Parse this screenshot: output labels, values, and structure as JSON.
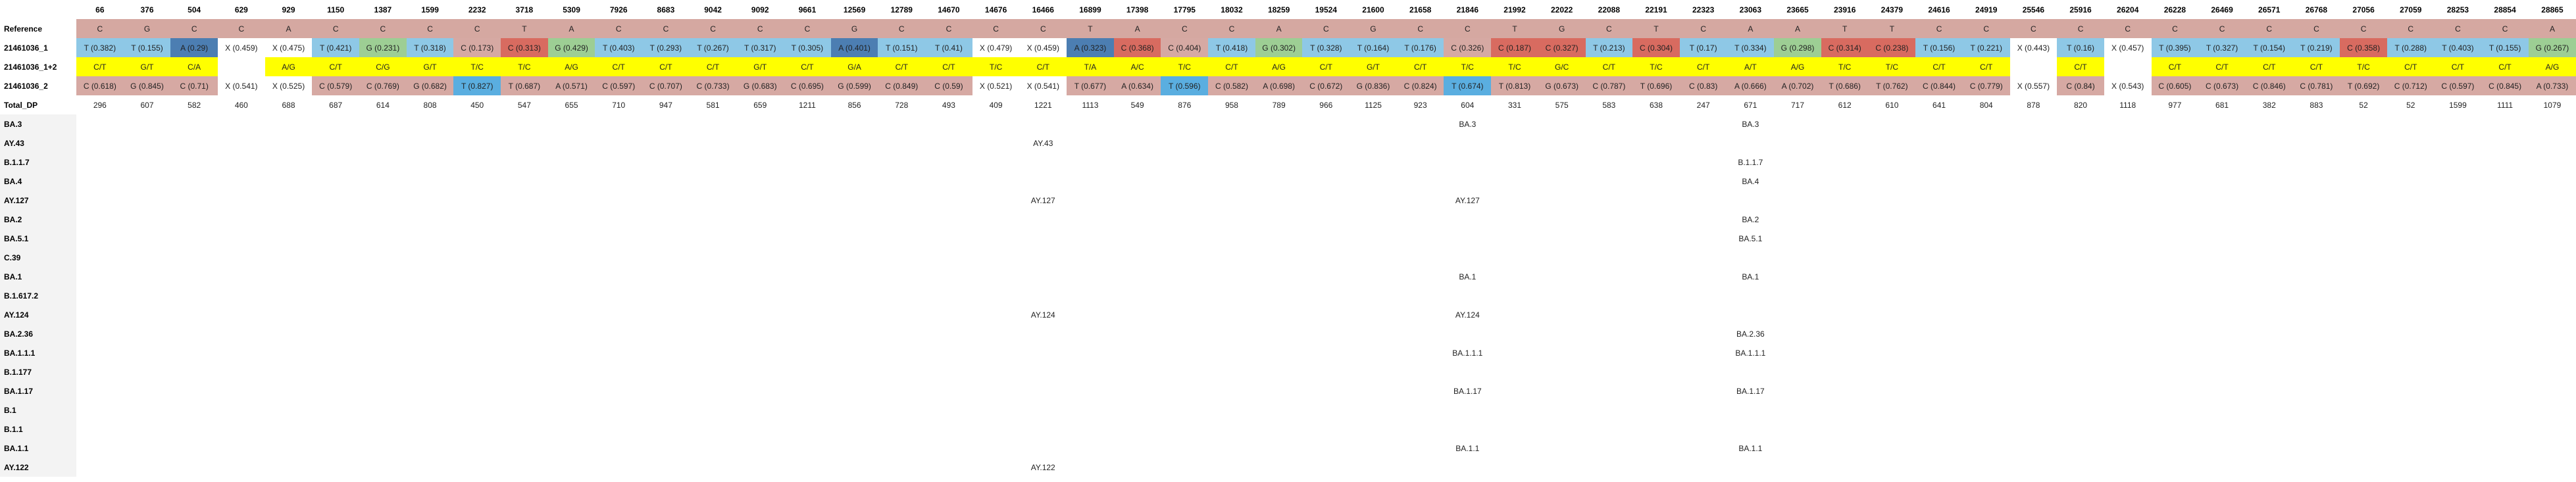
{
  "positions": [
    "66",
    "376",
    "504",
    "629",
    "929",
    "1150",
    "1387",
    "1599",
    "2232",
    "3718",
    "5309",
    "7926",
    "8683",
    "9042",
    "9092",
    "9661",
    "12569",
    "12789",
    "14670",
    "14676",
    "16466",
    "16899",
    "17398",
    "17795",
    "18032",
    "18259",
    "19524",
    "21600",
    "21658",
    "21846",
    "21992",
    "22022",
    "22088",
    "22191",
    "22323",
    "23063",
    "23665",
    "23916",
    "24379",
    "24616",
    "24919",
    "25546",
    "25916",
    "26204",
    "26228",
    "26469",
    "26571",
    "26768",
    "27056",
    "27059",
    "28253",
    "28854",
    "28865"
  ],
  "reference": {
    "label": "Reference",
    "values": [
      "C",
      "G",
      "C",
      "C",
      "A",
      "C",
      "C",
      "C",
      "C",
      "T",
      "A",
      "C",
      "C",
      "C",
      "C",
      "C",
      "G",
      "C",
      "C",
      "C",
      "C",
      "T",
      "A",
      "C",
      "C",
      "A",
      "C",
      "G",
      "C",
      "C",
      "T",
      "G",
      "C",
      "T",
      "C",
      "A",
      "A",
      "T",
      "T",
      "C",
      "C",
      "C",
      "C",
      "C",
      "C",
      "C",
      "C",
      "C",
      "C",
      "C",
      "C",
      "C",
      "A"
    ]
  },
  "sample1": {
    "label": "21461036_1",
    "values": [
      {
        "t": "T (0.382)",
        "k": "T"
      },
      {
        "t": "T (0.155)",
        "k": "T"
      },
      {
        "t": "A (0.29)",
        "k": "A"
      },
      {
        "t": "X (0.459)",
        "k": "X"
      },
      {
        "t": "X (0.475)",
        "k": "X"
      },
      {
        "t": "T (0.421)",
        "k": "T"
      },
      {
        "t": "G (0.231)",
        "k": "G"
      },
      {
        "t": "T (0.318)",
        "k": "T"
      },
      {
        "t": "C (0.173)",
        "k": "C"
      },
      {
        "t": "C (0.313)",
        "k": "Cs"
      },
      {
        "t": "G (0.429)",
        "k": "G"
      },
      {
        "t": "T (0.403)",
        "k": "T"
      },
      {
        "t": "T (0.293)",
        "k": "T"
      },
      {
        "t": "T (0.267)",
        "k": "T"
      },
      {
        "t": "T (0.317)",
        "k": "T"
      },
      {
        "t": "T (0.305)",
        "k": "T"
      },
      {
        "t": "A (0.401)",
        "k": "A"
      },
      {
        "t": "T (0.151)",
        "k": "T"
      },
      {
        "t": "T (0.41)",
        "k": "T"
      },
      {
        "t": "X (0.479)",
        "k": "X"
      },
      {
        "t": "X (0.459)",
        "k": "X"
      },
      {
        "t": "A (0.323)",
        "k": "A"
      },
      {
        "t": "C (0.368)",
        "k": "Cs"
      },
      {
        "t": "C (0.404)",
        "k": "C"
      },
      {
        "t": "T (0.418)",
        "k": "T"
      },
      {
        "t": "G (0.302)",
        "k": "G"
      },
      {
        "t": "T (0.328)",
        "k": "T"
      },
      {
        "t": "T (0.164)",
        "k": "T"
      },
      {
        "t": "T (0.176)",
        "k": "T"
      },
      {
        "t": "C (0.326)",
        "k": "C"
      },
      {
        "t": "C (0.187)",
        "k": "Cs"
      },
      {
        "t": "C (0.327)",
        "k": "Cs"
      },
      {
        "t": "T (0.213)",
        "k": "T"
      },
      {
        "t": "C (0.304)",
        "k": "Cs"
      },
      {
        "t": "T (0.17)",
        "k": "T"
      },
      {
        "t": "T (0.334)",
        "k": "T"
      },
      {
        "t": "G (0.298)",
        "k": "G"
      },
      {
        "t": "C (0.314)",
        "k": "Cs"
      },
      {
        "t": "C (0.238)",
        "k": "Cs"
      },
      {
        "t": "T (0.156)",
        "k": "T"
      },
      {
        "t": "T (0.221)",
        "k": "T"
      },
      {
        "t": "X (0.443)",
        "k": "X"
      },
      {
        "t": "T (0.16)",
        "k": "T"
      },
      {
        "t": "X (0.457)",
        "k": "X"
      },
      {
        "t": "T (0.395)",
        "k": "T"
      },
      {
        "t": "T (0.327)",
        "k": "T"
      },
      {
        "t": "T (0.154)",
        "k": "T"
      },
      {
        "t": "T (0.219)",
        "k": "T"
      },
      {
        "t": "C (0.358)",
        "k": "Cs"
      },
      {
        "t": "T (0.288)",
        "k": "T"
      },
      {
        "t": "T (0.403)",
        "k": "T"
      },
      {
        "t": "T (0.155)",
        "k": "T"
      },
      {
        "t": "G (0.267)",
        "k": "G"
      }
    ]
  },
  "sample12": {
    "label": "21461036_1+2",
    "values": [
      "C/T",
      "G/T",
      "C/A",
      "",
      "A/G",
      "C/T",
      "C/G",
      "G/T",
      "T/C",
      "T/C",
      "A/G",
      "C/T",
      "C/T",
      "C/T",
      "G/T",
      "C/T",
      "G/A",
      "C/T",
      "C/T",
      "T/C",
      "C/T",
      "T/A",
      "A/C",
      "T/C",
      "C/T",
      "A/G",
      "C/T",
      "G/T",
      "C/T",
      "T/C",
      "T/C",
      "G/C",
      "C/T",
      "T/C",
      "C/T",
      "A/T",
      "A/G",
      "T/C",
      "T/C",
      "C/T",
      "C/T",
      "",
      "C/T",
      "",
      "C/T",
      "C/T",
      "C/T",
      "C/T",
      "T/C",
      "C/T",
      "C/T",
      "C/T",
      "A/G"
    ]
  },
  "sample2": {
    "label": "21461036_2",
    "values": [
      {
        "t": "C (0.618)",
        "k": "C"
      },
      {
        "t": "G (0.845)",
        "k": "C"
      },
      {
        "t": "C (0.71)",
        "k": "C"
      },
      {
        "t": "X (0.541)",
        "k": "X"
      },
      {
        "t": "X (0.525)",
        "k": "X"
      },
      {
        "t": "C (0.579)",
        "k": "C"
      },
      {
        "t": "C (0.769)",
        "k": "C"
      },
      {
        "t": "G (0.682)",
        "k": "C"
      },
      {
        "t": "T (0.827)",
        "k": "Tb"
      },
      {
        "t": "T (0.687)",
        "k": "C"
      },
      {
        "t": "A (0.571)",
        "k": "C"
      },
      {
        "t": "C (0.597)",
        "k": "C"
      },
      {
        "t": "C (0.707)",
        "k": "C"
      },
      {
        "t": "C (0.733)",
        "k": "C"
      },
      {
        "t": "G (0.683)",
        "k": "C"
      },
      {
        "t": "C (0.695)",
        "k": "C"
      },
      {
        "t": "G (0.599)",
        "k": "C"
      },
      {
        "t": "C (0.849)",
        "k": "C"
      },
      {
        "t": "C (0.59)",
        "k": "C"
      },
      {
        "t": "X (0.521)",
        "k": "X"
      },
      {
        "t": "X (0.541)",
        "k": "X"
      },
      {
        "t": "T (0.677)",
        "k": "C"
      },
      {
        "t": "A (0.634)",
        "k": "C"
      },
      {
        "t": "T (0.596)",
        "k": "Tb"
      },
      {
        "t": "C (0.582)",
        "k": "C"
      },
      {
        "t": "A (0.698)",
        "k": "C"
      },
      {
        "t": "C (0.672)",
        "k": "C"
      },
      {
        "t": "G (0.836)",
        "k": "C"
      },
      {
        "t": "C (0.824)",
        "k": "C"
      },
      {
        "t": "T (0.674)",
        "k": "Tb"
      },
      {
        "t": "T (0.813)",
        "k": "C"
      },
      {
        "t": "G (0.673)",
        "k": "C"
      },
      {
        "t": "C (0.787)",
        "k": "C"
      },
      {
        "t": "T (0.696)",
        "k": "C"
      },
      {
        "t": "C (0.83)",
        "k": "C"
      },
      {
        "t": "A (0.666)",
        "k": "C"
      },
      {
        "t": "A (0.702)",
        "k": "C"
      },
      {
        "t": "T (0.686)",
        "k": "C"
      },
      {
        "t": "T (0.762)",
        "k": "C"
      },
      {
        "t": "C (0.844)",
        "k": "C"
      },
      {
        "t": "C (0.779)",
        "k": "C"
      },
      {
        "t": "X (0.557)",
        "k": "X"
      },
      {
        "t": "C (0.84)",
        "k": "C"
      },
      {
        "t": "X (0.543)",
        "k": "X"
      },
      {
        "t": "C (0.605)",
        "k": "C"
      },
      {
        "t": "C (0.673)",
        "k": "C"
      },
      {
        "t": "C (0.846)",
        "k": "C"
      },
      {
        "t": "C (0.781)",
        "k": "C"
      },
      {
        "t": "T (0.692)",
        "k": "C"
      },
      {
        "t": "C (0.712)",
        "k": "C"
      },
      {
        "t": "C (0.597)",
        "k": "C"
      },
      {
        "t": "C (0.845)",
        "k": "C"
      },
      {
        "t": "A (0.733)",
        "k": "C"
      }
    ]
  },
  "total_dp": {
    "label": "Total_DP",
    "values": [
      "296",
      "607",
      "582",
      "460",
      "688",
      "687",
      "614",
      "808",
      "450",
      "547",
      "655",
      "710",
      "947",
      "581",
      "659",
      "1211",
      "856",
      "728",
      "493",
      "409",
      "1221",
      "1113",
      "549",
      "876",
      "958",
      "789",
      "966",
      "1125",
      "923",
      "604",
      "331",
      "575",
      "583",
      "638",
      "247",
      "671",
      "717",
      "612",
      "610",
      "641",
      "804",
      "878",
      "820",
      "1118",
      "977",
      "681",
      "382",
      "883",
      "52",
      "52",
      "1599",
      "1111",
      "1079"
    ]
  },
  "lineages": [
    {
      "name": "BA.3",
      "marks": {
        "29": "BA.3",
        "35": "BA.3"
      }
    },
    {
      "name": "AY.43",
      "marks": {
        "20": "AY.43"
      }
    },
    {
      "name": "B.1.1.7",
      "marks": {
        "35": "B.1.1.7"
      }
    },
    {
      "name": "BA.4",
      "marks": {
        "35": "BA.4"
      }
    },
    {
      "name": "AY.127",
      "marks": {
        "20": "AY.127",
        "29": "AY.127"
      }
    },
    {
      "name": "BA.2",
      "marks": {
        "35": "BA.2"
      }
    },
    {
      "name": "BA.5.1",
      "marks": {
        "35": "BA.5.1"
      }
    },
    {
      "name": "C.39",
      "marks": {}
    },
    {
      "name": "BA.1",
      "marks": {
        "29": "BA.1",
        "35": "BA.1"
      }
    },
    {
      "name": "B.1.617.2",
      "marks": {}
    },
    {
      "name": "AY.124",
      "marks": {
        "20": "AY.124",
        "29": "AY.124"
      }
    },
    {
      "name": "BA.2.36",
      "marks": {
        "35": "BA.2.36"
      }
    },
    {
      "name": "BA.1.1.1",
      "marks": {
        "29": "BA.1.1.1",
        "35": "BA.1.1.1"
      }
    },
    {
      "name": "B.1.177",
      "marks": {}
    },
    {
      "name": "BA.1.17",
      "marks": {
        "29": "BA.1.17",
        "35": "BA.1.17"
      }
    },
    {
      "name": "B.1",
      "marks": {}
    },
    {
      "name": "B.1.1",
      "marks": {}
    },
    {
      "name": "BA.1.1",
      "marks": {
        "29": "BA.1.1",
        "35": "BA.1.1"
      }
    },
    {
      "name": "AY.122",
      "marks": {
        "20": "AY.122"
      }
    }
  ],
  "colors": {
    "T": "#8ec8e6",
    "C": "#d6a9a3",
    "G": "#9dce94",
    "A": "#4c7eb2",
    "X": "#ffffff",
    "Cs": "#d86b60",
    "Tb": "#5aaee0",
    "yellow": "#ffff00"
  }
}
